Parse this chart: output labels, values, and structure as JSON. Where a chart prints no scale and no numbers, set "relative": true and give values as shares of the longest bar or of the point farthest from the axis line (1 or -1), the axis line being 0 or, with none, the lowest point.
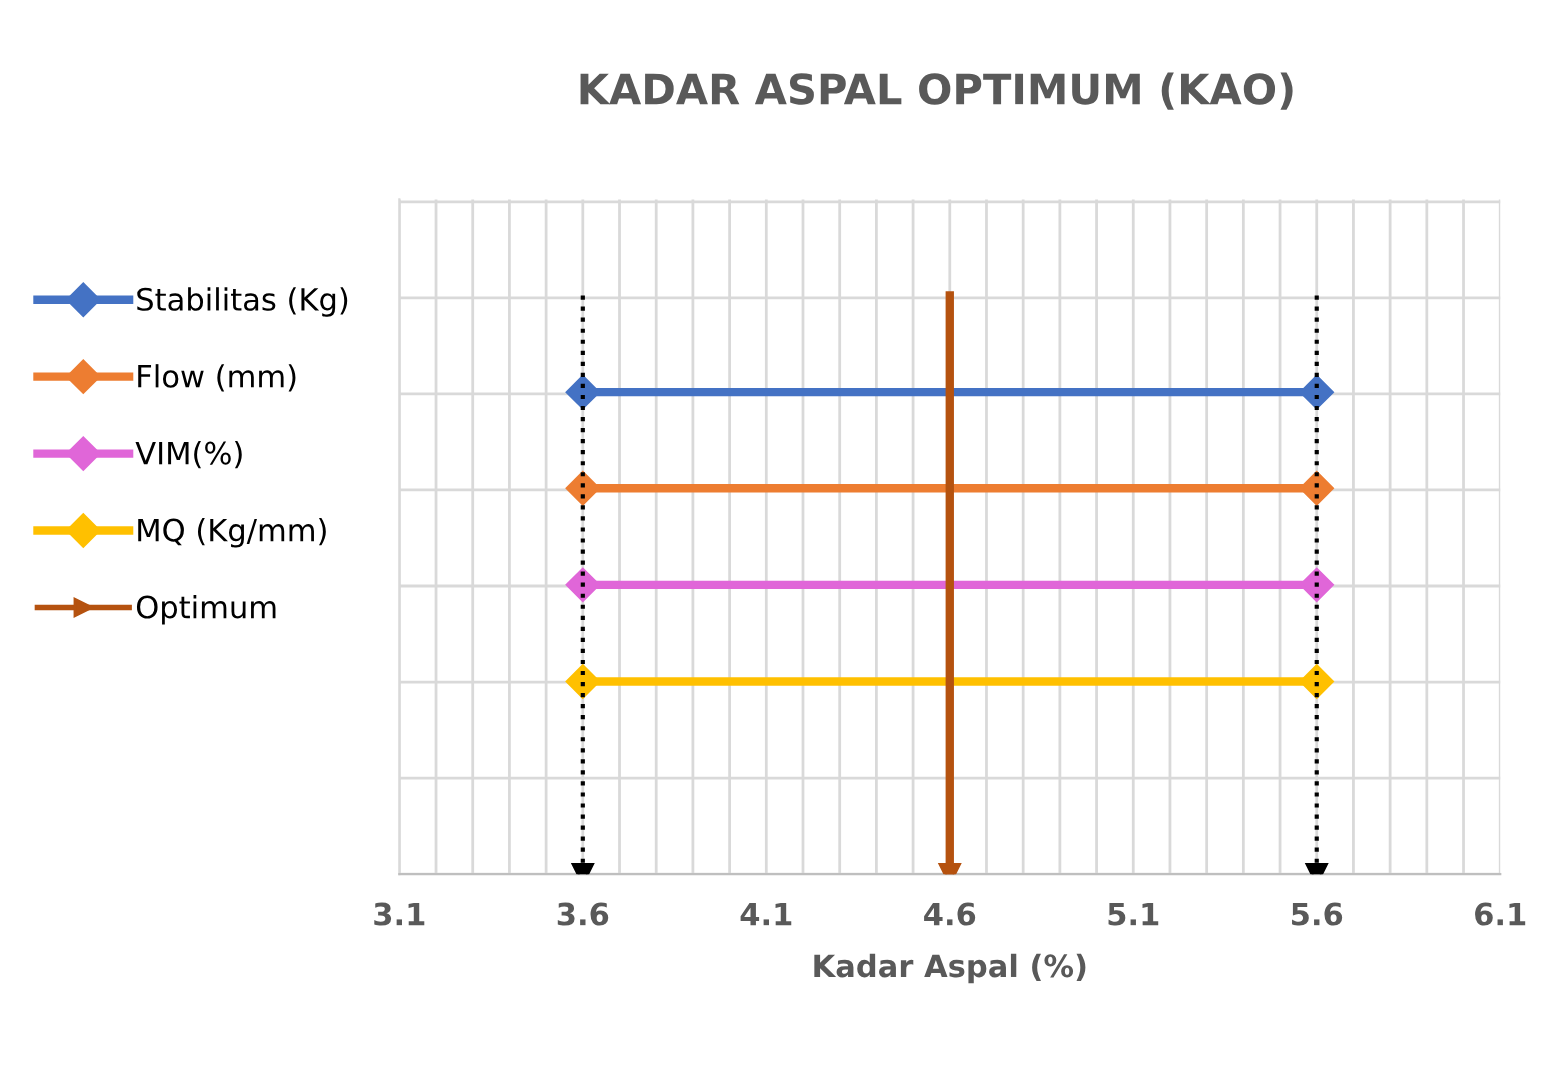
{
  "chart_data": {
    "type": "line",
    "title": "KADAR ASPAL OPTIMUM (KAO)",
    "xlabel": "Kadar Aspal (%)",
    "relative": true,
    "xlim": [
      3.1,
      6.1
    ],
    "xticks": [
      3.1,
      {
        "value": 3.2,
        "label": null
      },
      {
        "value": 3.3,
        "label": null
      },
      {
        "value": 3.4,
        "label": null
      },
      {
        "value": 3.5,
        "label": null
      },
      3.6,
      {
        "value": 3.7,
        "label": null
      },
      {
        "value": 3.8,
        "label": null
      },
      {
        "value": 3.9,
        "label": null
      },
      {
        "value": 4.0,
        "label": null
      },
      4.1,
      {
        "value": 4.2,
        "label": null
      },
      {
        "value": 4.3,
        "label": null
      },
      {
        "value": 4.4,
        "label": null
      },
      {
        "value": 4.5,
        "label": null
      },
      4.6,
      {
        "value": 4.7,
        "label": null
      },
      {
        "value": 4.8,
        "label": null
      },
      {
        "value": 4.9,
        "label": null
      },
      {
        "value": 5.0,
        "label": null
      },
      5.1,
      {
        "value": 5.2,
        "label": null
      },
      {
        "value": 5.3,
        "label": null
      },
      {
        "value": 5.4,
        "label": null
      },
      {
        "value": 5.5,
        "label": null
      },
      5.6,
      {
        "value": 5.7,
        "label": null
      },
      {
        "value": 5.8,
        "label": null
      },
      {
        "value": 5.9,
        "label": null
      },
      {
        "value": 6.0,
        "label": null
      },
      6.1
    ],
    "grid": true,
    "legend": "left",
    "tick_labels": "x",
    "series": [
      {
        "name": "Stabilitas (Kg)",
        "color": "#4472c4",
        "x": [
          3.6,
          5.6
        ],
        "values": [
          0.833,
          0.833
        ],
        "marker": "diamond",
        "line_style": "solid"
      },
      {
        "name": "Flow (mm)",
        "color": "#ed7d31",
        "x": [
          3.6,
          5.6
        ],
        "values": [
          0.667,
          0.667
        ],
        "marker": "diamond",
        "line_style": "solid"
      },
      {
        "name": "VIM(%)",
        "color": "#e066d8",
        "x": [
          3.6,
          5.6
        ],
        "values": [
          0.5,
          0.5
        ],
        "marker": "diamond",
        "line_style": "solid"
      },
      {
        "name": "MQ (Kg/mm)",
        "color": "#ffc000",
        "x": [
          3.6,
          5.6
        ],
        "values": [
          0.333,
          0.333
        ],
        "marker": "diamond",
        "line_style": "solid"
      },
      {
        "name": "Optimum",
        "color": "#b5520f",
        "x": [
          4.6,
          4.6
        ],
        "values": [
          1,
          0
        ],
        "marker": "triangle",
        "line_style": "solid"
      },
      {
        "color": "#000000",
        "x": [
          3.6,
          3.6
        ],
        "values": [
          1,
          0
        ],
        "marker": "triangle",
        "line_style": "dotted"
      },
      {
        "color": "#000000",
        "x": [
          5.6,
          5.6
        ],
        "values": [
          1,
          0
        ],
        "marker": "triangle",
        "line_style": "dotted"
      }
    ]
  }
}
